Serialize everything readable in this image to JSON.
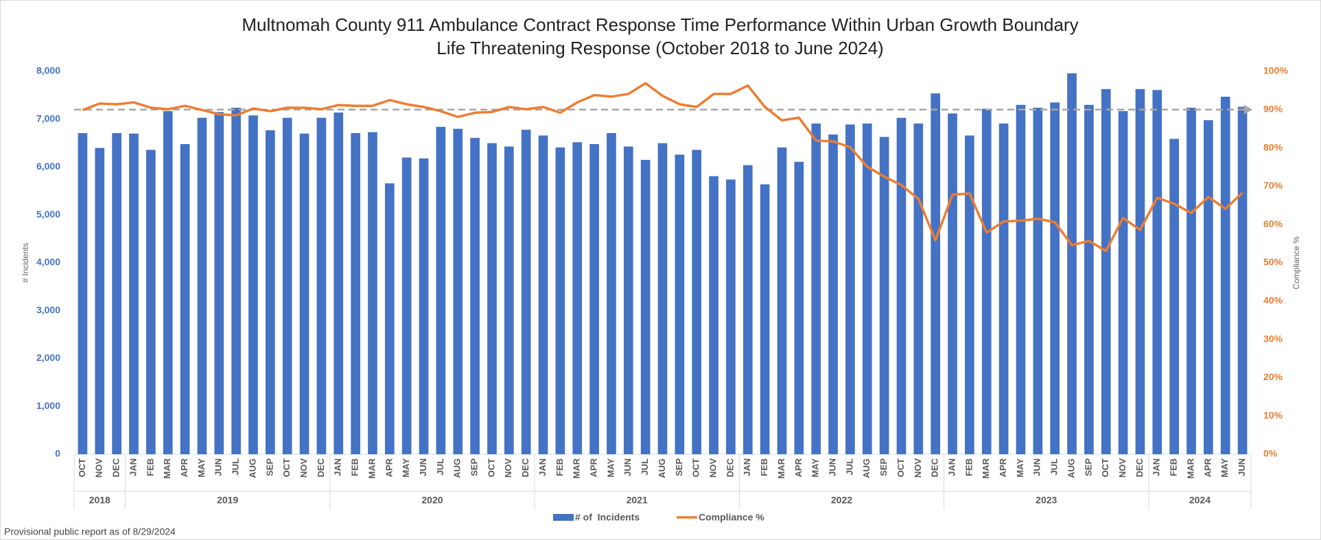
{
  "chart_data": {
    "type": "combo",
    "title": "Multnomah County 911 Ambulance Contract Response Time Performance Within Urban Growth Boundary",
    "subtitle": "Life Threatening Response (October 2018 to June 2024)",
    "categories": [
      "OCT",
      "NOV",
      "DEC",
      "JAN",
      "FEB",
      "MAR",
      "APR",
      "MAY",
      "JUN",
      "JUL",
      "AUG",
      "SEP",
      "OCT",
      "NOV",
      "DEC",
      "JAN",
      "FEB",
      "MAR",
      "APR",
      "MAY",
      "JUN",
      "JUL",
      "AUG",
      "SEP",
      "OCT",
      "NOV",
      "DEC",
      "JAN",
      "FEB",
      "MAR",
      "APR",
      "MAY",
      "JUN",
      "JUL",
      "AUG",
      "SEP",
      "OCT",
      "NOV",
      "DEC",
      "JAN",
      "FEB",
      "MAR",
      "APR",
      "MAY",
      "JUN",
      "JUL",
      "AUG",
      "SEP",
      "OCT",
      "NOV",
      "DEC",
      "JAN",
      "FEB",
      "MAR",
      "APR",
      "MAY",
      "JUN",
      "JUL",
      "AUG",
      "SEP",
      "OCT",
      "NOV",
      "DEC",
      "JAN",
      "FEB",
      "MAR",
      "APR",
      "MAY",
      "JUN"
    ],
    "x_groups": [
      {
        "label": "2018",
        "count": 3
      },
      {
        "label": "2019",
        "count": 12
      },
      {
        "label": "2020",
        "count": 12
      },
      {
        "label": "2021",
        "count": 12
      },
      {
        "label": "2022",
        "count": 12
      },
      {
        "label": "2023",
        "count": 12
      },
      {
        "label": "2024",
        "count": 6
      }
    ],
    "series": [
      {
        "name": "# of  Incidents",
        "color": "#4472c4",
        "type": "bar",
        "values": [
          6710,
          6400,
          6710,
          6700,
          6360,
          7170,
          6480,
          7030,
          7150,
          7240,
          7080,
          6770,
          7030,
          6700,
          7030,
          7140,
          6710,
          6730,
          5660,
          6200,
          6180,
          6840,
          6800,
          6610,
          6500,
          6430,
          6780,
          6660,
          6410,
          6520,
          6480,
          6710,
          6430,
          6150,
          6500,
          6260,
          6360,
          5810,
          5740,
          6040,
          5640,
          6410,
          6110,
          6910,
          6680,
          6890,
          6910,
          6630,
          7030,
          6910,
          7540,
          7120,
          6660,
          7220,
          6910,
          7300,
          7240,
          7350,
          7960,
          7300,
          7630,
          7170,
          7630,
          7610,
          6590,
          7240,
          6980,
          7470,
          7260
        ]
      },
      {
        "name": "Compliance %",
        "color": "#ed7d31",
        "type": "line",
        "axis": "y2",
        "values": [
          89.9,
          91.6,
          91.4,
          91.9,
          90.5,
          90.1,
          91.0,
          89.9,
          88.8,
          88.5,
          90.3,
          89.6,
          90.5,
          90.5,
          90.1,
          91.2,
          91.0,
          91.0,
          92.5,
          91.4,
          90.7,
          89.6,
          88.1,
          89.2,
          89.4,
          90.7,
          90.1,
          90.7,
          89.2,
          91.9,
          93.8,
          93.4,
          94.1,
          96.9,
          93.6,
          91.4,
          90.7,
          94.1,
          94.1,
          96.3,
          90.7,
          87.2,
          87.9,
          81.9,
          81.7,
          80.2,
          75.1,
          72.5,
          70.3,
          66.7,
          55.9,
          67.8,
          68.1,
          57.9,
          60.8,
          61.0,
          61.5,
          60.6,
          54.6,
          55.7,
          53.1,
          61.7,
          58.6,
          67.0,
          65.4,
          63.0,
          67.2,
          64.1,
          68.3
        ]
      }
    ],
    "target": {
      "value": 90,
      "axis": "y2",
      "color": "#a6a6a6"
    },
    "ylabel": "# Incidents",
    "y2label": "Compliance %",
    "ylim": [
      0,
      8000
    ],
    "yticks": [
      0,
      {
        "value": 1000,
        "label": "1,000"
      },
      {
        "value": 2000,
        "label": "2,000"
      },
      {
        "value": 3000,
        "label": "3,000"
      },
      {
        "value": 4000,
        "label": "4,000"
      },
      {
        "value": 5000,
        "label": "5,000"
      },
      {
        "value": 6000,
        "label": "6,000"
      },
      {
        "value": 7000,
        "label": "7,000"
      },
      {
        "value": 8000,
        "label": "8,000"
      }
    ],
    "y2lim": [
      0,
      100
    ],
    "y2ticks": [
      {
        "value": 0,
        "label": "0%"
      },
      {
        "value": 10,
        "label": "10%"
      },
      {
        "value": 20,
        "label": "20%"
      },
      {
        "value": 30,
        "label": "30%"
      },
      {
        "value": 40,
        "label": "40%"
      },
      {
        "value": 50,
        "label": "50%"
      },
      {
        "value": 60,
        "label": "60%"
      },
      {
        "value": 70,
        "label": "70%"
      },
      {
        "value": 80,
        "label": "80%"
      },
      {
        "value": 90,
        "label": "90%"
      },
      {
        "value": 100,
        "label": "100%"
      }
    ],
    "ytick_color": "#4472c4",
    "y2tick_color": "#ed7d31",
    "note": "Provisional public report as of 8/29/2024"
  }
}
